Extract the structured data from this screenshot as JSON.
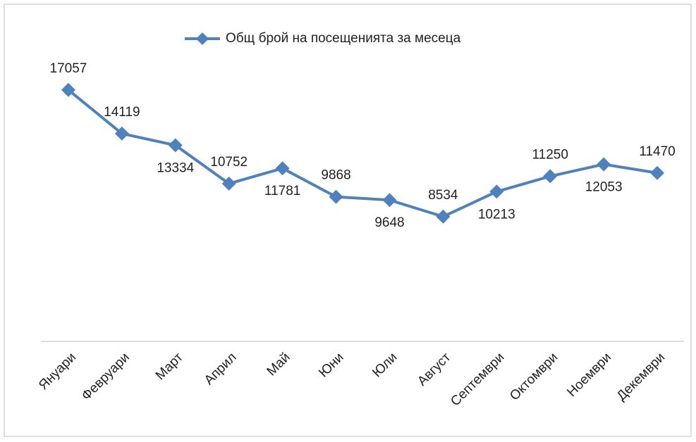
{
  "chart_data": {
    "type": "line",
    "categories": [
      "Януари",
      "Февруари",
      "Март",
      "Април",
      "Май",
      "Юни",
      "Юли",
      "Август",
      "Септември",
      "Октомври",
      "Ноември",
      "Декември"
    ],
    "series": [
      {
        "name": "Общ брой на посещенията за месеца",
        "color": "#4f81bd",
        "values": [
          17057,
          14119,
          13334,
          10752,
          11781,
          9868,
          9648,
          8534,
          10213,
          11250,
          12053,
          11470
        ]
      }
    ],
    "ylim": [
      0,
      20000
    ],
    "legend": "top"
  }
}
